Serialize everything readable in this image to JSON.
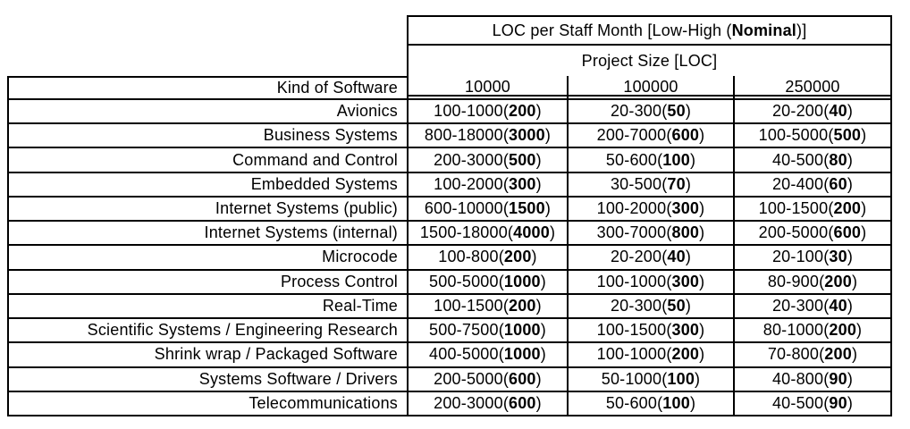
{
  "colors": {
    "background": "#ffffff",
    "text": "#000000",
    "line": "#000000"
  },
  "table": {
    "title": {
      "pre": "LOC per Staff Month [Low-High (",
      "bold": "Nominal",
      "post": ")]"
    },
    "subtitle": "Project Size [LOC]",
    "corner_label": "Kind of Software",
    "size_columns": [
      "10000",
      "100000",
      "250000"
    ],
    "rows": [
      {
        "label": "Avionics",
        "cells": [
          {
            "range": "100-1000",
            "nominal": "200"
          },
          {
            "range": "20-300",
            "nominal": "50"
          },
          {
            "range": "20-200",
            "nominal": "40"
          }
        ]
      },
      {
        "label": "Business Systems",
        "cells": [
          {
            "range": "800-18000",
            "nominal": "3000"
          },
          {
            "range": "200-7000",
            "nominal": "600"
          },
          {
            "range": "100-5000",
            "nominal": "500"
          }
        ]
      },
      {
        "label": "Command and Control",
        "cells": [
          {
            "range": "200-3000",
            "nominal": "500"
          },
          {
            "range": "50-600",
            "nominal": "100"
          },
          {
            "range": "40-500",
            "nominal": "80"
          }
        ]
      },
      {
        "label": "Embedded Systems",
        "cells": [
          {
            "range": "100-2000",
            "nominal": "300"
          },
          {
            "range": "30-500",
            "nominal": "70"
          },
          {
            "range": "20-400",
            "nominal": "60"
          }
        ]
      },
      {
        "label": "Internet Systems (public)",
        "cells": [
          {
            "range": "600-10000",
            "nominal": "1500"
          },
          {
            "range": "100-2000",
            "nominal": "300"
          },
          {
            "range": "100-1500",
            "nominal": "200"
          }
        ]
      },
      {
        "label": "Internet Systems (internal)",
        "cells": [
          {
            "range": "1500-18000",
            "nominal": "4000"
          },
          {
            "range": "300-7000",
            "nominal": "800"
          },
          {
            "range": "200-5000",
            "nominal": "600"
          }
        ]
      },
      {
        "label": "Microcode",
        "cells": [
          {
            "range": "100-800",
            "nominal": "200"
          },
          {
            "range": "20-200",
            "nominal": "40"
          },
          {
            "range": "20-100",
            "nominal": "30"
          }
        ]
      },
      {
        "label": "Process Control",
        "cells": [
          {
            "range": "500-5000",
            "nominal": "1000"
          },
          {
            "range": "100-1000",
            "nominal": "300"
          },
          {
            "range": "80-900",
            "nominal": "200"
          }
        ]
      },
      {
        "label": "Real-Time",
        "cells": [
          {
            "range": "100-1500",
            "nominal": "200"
          },
          {
            "range": "20-300",
            "nominal": "50"
          },
          {
            "range": "20-300",
            "nominal": "40"
          }
        ]
      },
      {
        "label": "Scientific Systems / Engineering Research",
        "cells": [
          {
            "range": "500-7500",
            "nominal": "1000"
          },
          {
            "range": "100-1500",
            "nominal": "300"
          },
          {
            "range": "80-1000",
            "nominal": "200"
          }
        ]
      },
      {
        "label": "Shrink wrap / Packaged Software",
        "cells": [
          {
            "range": "400-5000",
            "nominal": "1000"
          },
          {
            "range": "100-1000",
            "nominal": "200"
          },
          {
            "range": "70-800",
            "nominal": "200"
          }
        ]
      },
      {
        "label": "Systems Software / Drivers",
        "cells": [
          {
            "range": "200-5000",
            "nominal": "600"
          },
          {
            "range": "50-1000",
            "nominal": "100"
          },
          {
            "range": "40-800",
            "nominal": "90"
          }
        ]
      },
      {
        "label": "Telecommunications",
        "cells": [
          {
            "range": "200-3000",
            "nominal": "600"
          },
          {
            "range": "50-600",
            "nominal": "100"
          },
          {
            "range": "40-500",
            "nominal": "90"
          }
        ]
      }
    ]
  }
}
